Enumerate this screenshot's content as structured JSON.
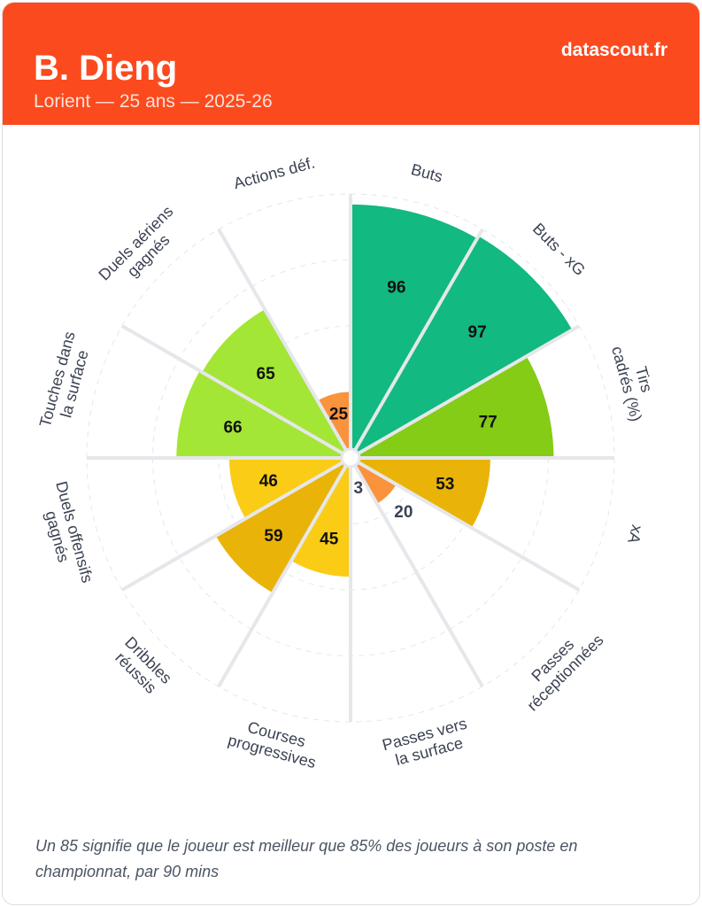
{
  "header": {
    "player": "B. Dieng",
    "subtitle": "Lorient — 25 ans — 2025-26",
    "brand": "datascout.fr"
  },
  "chart_data": {
    "type": "polar-bar",
    "title": "B. Dieng",
    "rmax": 100,
    "gridlines": [
      25,
      50,
      75,
      100
    ],
    "categories": [
      "Buts",
      "Buts - xG",
      "Tirs cadrés (%)",
      "xA",
      "Passes réceptionnées",
      "Passes vers la surface",
      "Courses progressives",
      "Dribbles réussis",
      "Duels offensifs gagnés",
      "Touches dans la surface",
      "Duels aériens gagnés",
      "Actions déf."
    ],
    "values": [
      96,
      97,
      77,
      53,
      20,
      3,
      45,
      59,
      46,
      66,
      65,
      25
    ],
    "colors": [
      "#12b981",
      "#12b981",
      "#84cc16",
      "#eab308",
      "#fb923c",
      "#fb923c",
      "#facc15",
      "#eab308",
      "#facc15",
      "#a3e635",
      "#a3e635",
      "#fb923c"
    ]
  },
  "footer": "Un 85 signifie que le joueur est meilleur que 85% des joueurs à son poste en championnat, par 90 mins"
}
